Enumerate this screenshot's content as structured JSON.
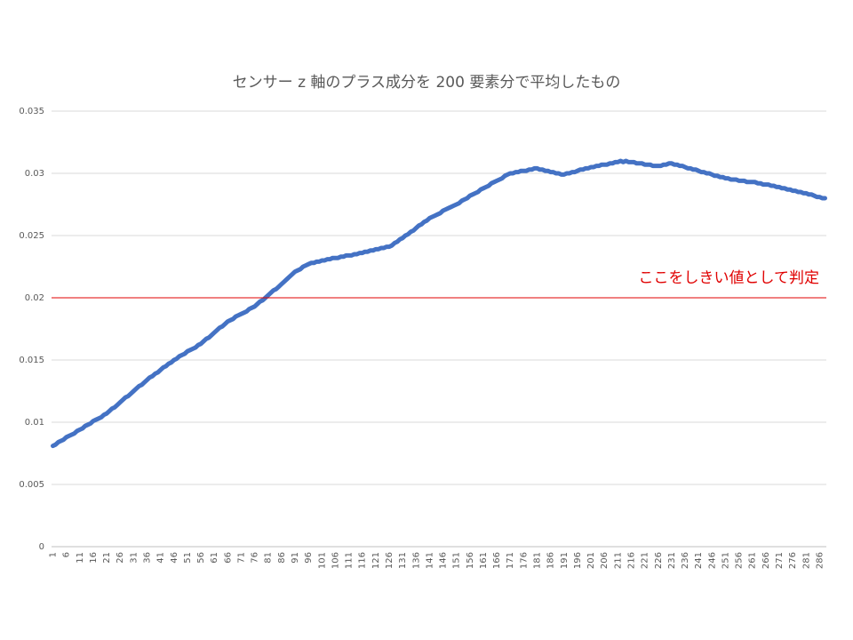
{
  "chart_data": {
    "type": "line",
    "title": "センサー z 軸のプラス成分を 200 要素分で平均したもの",
    "categories": [
      1,
      null,
      null,
      null,
      null,
      6,
      null,
      null,
      null,
      null,
      11,
      null,
      null,
      null,
      null,
      16,
      null,
      null,
      null,
      null,
      21,
      null,
      null,
      null,
      null,
      26,
      null,
      null,
      null,
      null,
      31,
      null,
      null,
      null,
      null,
      36,
      null,
      null,
      null,
      null,
      41,
      null,
      null,
      null,
      null,
      46,
      null,
      null,
      null,
      null,
      51,
      null,
      null,
      null,
      null,
      56,
      null,
      null,
      null,
      null,
      61,
      null,
      null,
      null,
      null,
      66,
      null,
      null,
      null,
      null,
      71,
      null,
      null,
      null,
      null,
      76,
      null,
      null,
      null,
      null,
      81,
      null,
      null,
      null,
      null,
      86,
      null,
      null,
      null,
      null,
      91,
      null,
      null,
      null,
      null,
      96,
      null,
      null,
      null,
      null,
      101,
      null,
      null,
      null,
      null,
      106,
      null,
      null,
      null,
      null,
      111,
      null,
      null,
      null,
      null,
      116,
      null,
      null,
      null,
      null,
      121,
      null,
      null,
      null,
      null,
      126,
      null,
      null,
      null,
      null,
      131,
      null,
      null,
      null,
      null,
      136,
      null,
      null,
      null,
      null,
      141,
      null,
      null,
      null,
      null,
      146,
      null,
      null,
      null,
      null,
      151,
      null,
      null,
      null,
      null,
      156,
      null,
      null,
      null,
      null,
      161,
      null,
      null,
      null,
      null,
      166,
      null,
      null,
      null,
      null,
      171,
      null,
      null,
      null,
      null,
      176,
      null,
      null,
      null,
      null,
      181,
      null,
      null,
      null,
      null,
      186,
      null,
      null,
      null,
      null,
      191,
      null,
      null,
      null,
      null,
      196,
      null,
      null,
      null,
      null,
      201,
      null,
      null,
      null,
      null,
      206,
      null,
      null,
      null,
      null,
      211,
      null,
      null,
      null,
      null,
      216,
      null,
      null,
      null,
      null,
      221,
      null,
      null,
      null,
      null,
      226,
      null,
      null,
      null,
      null,
      231,
      null,
      null,
      null,
      null,
      236,
      null,
      null,
      null,
      null,
      241,
      null,
      null,
      null,
      null,
      246,
      null,
      null,
      null,
      null,
      251,
      null,
      null,
      null,
      null,
      256,
      null,
      null,
      null,
      null,
      261,
      null,
      null,
      null,
      null,
      266,
      null,
      null,
      null,
      null,
      271,
      null,
      null,
      null,
      null,
      276,
      null,
      null,
      null,
      null,
      281,
      null,
      null,
      null,
      null,
      286,
      null,
      null
    ],
    "series": [
      {
        "color": "#4472c4",
        "values": [
          0.0081,
          0.0082,
          0.0084,
          0.0085,
          0.0086,
          0.0088,
          0.0089,
          0.009,
          0.0091,
          0.0093,
          0.0094,
          0.0095,
          0.0097,
          0.0098,
          0.0099,
          0.0101,
          0.0102,
          0.0103,
          0.0104,
          0.0106,
          0.0107,
          0.0109,
          0.0111,
          0.0112,
          0.0114,
          0.0116,
          0.0118,
          0.012,
          0.0121,
          0.0123,
          0.0125,
          0.0127,
          0.0129,
          0.013,
          0.0132,
          0.0134,
          0.0136,
          0.0137,
          0.0139,
          0.014,
          0.0142,
          0.0144,
          0.0145,
          0.0147,
          0.0148,
          0.015,
          0.0151,
          0.0153,
          0.0154,
          0.0155,
          0.0157,
          0.0158,
          0.0159,
          0.016,
          0.0162,
          0.0163,
          0.0165,
          0.0167,
          0.0168,
          0.017,
          0.0172,
          0.0174,
          0.0176,
          0.0177,
          0.0179,
          0.0181,
          0.0182,
          0.0183,
          0.0185,
          0.0186,
          0.0187,
          0.0188,
          0.0189,
          0.0191,
          0.0192,
          0.0193,
          0.0195,
          0.0197,
          0.0198,
          0.02,
          0.0202,
          0.0204,
          0.0206,
          0.0207,
          0.0209,
          0.0211,
          0.0213,
          0.0215,
          0.0217,
          0.0219,
          0.0221,
          0.0222,
          0.0223,
          0.0225,
          0.0226,
          0.0227,
          0.0228,
          0.0228,
          0.0229,
          0.0229,
          0.023,
          0.023,
          0.0231,
          0.0231,
          0.0232,
          0.0232,
          0.0232,
          0.0233,
          0.0233,
          0.0234,
          0.0234,
          0.0234,
          0.0235,
          0.0235,
          0.0236,
          0.0236,
          0.0237,
          0.0237,
          0.0238,
          0.0238,
          0.0239,
          0.0239,
          0.024,
          0.024,
          0.0241,
          0.0241,
          0.0242,
          0.0244,
          0.0245,
          0.0247,
          0.0248,
          0.025,
          0.0251,
          0.0253,
          0.0254,
          0.0256,
          0.0258,
          0.0259,
          0.0261,
          0.0262,
          0.0264,
          0.0265,
          0.0266,
          0.0267,
          0.0268,
          0.027,
          0.0271,
          0.0272,
          0.0273,
          0.0274,
          0.0275,
          0.0276,
          0.0278,
          0.0279,
          0.028,
          0.0282,
          0.0283,
          0.0284,
          0.0285,
          0.0287,
          0.0288,
          0.0289,
          0.029,
          0.0292,
          0.0293,
          0.0294,
          0.0295,
          0.0296,
          0.0298,
          0.0299,
          0.03,
          0.03,
          0.0301,
          0.0301,
          0.0302,
          0.0302,
          0.0302,
          0.0303,
          0.0303,
          0.0304,
          0.0304,
          0.0303,
          0.0303,
          0.0302,
          0.0302,
          0.0301,
          0.0301,
          0.03,
          0.03,
          0.0299,
          0.0299,
          0.03,
          0.03,
          0.0301,
          0.0301,
          0.0302,
          0.0303,
          0.0303,
          0.0304,
          0.0304,
          0.0305,
          0.0305,
          0.0306,
          0.0306,
          0.0307,
          0.0307,
          0.0307,
          0.0308,
          0.0308,
          0.0309,
          0.0309,
          0.031,
          0.0309,
          0.031,
          0.0309,
          0.0309,
          0.0309,
          0.0308,
          0.0308,
          0.0308,
          0.0307,
          0.0307,
          0.0307,
          0.0306,
          0.0306,
          0.0306,
          0.0306,
          0.0307,
          0.0307,
          0.0308,
          0.0308,
          0.0307,
          0.0307,
          0.0306,
          0.0306,
          0.0305,
          0.0304,
          0.0304,
          0.0303,
          0.0303,
          0.0302,
          0.0301,
          0.0301,
          0.03,
          0.03,
          0.0299,
          0.0298,
          0.0298,
          0.0297,
          0.0297,
          0.0296,
          0.0296,
          0.0295,
          0.0295,
          0.0295,
          0.0294,
          0.0294,
          0.0294,
          0.0293,
          0.0293,
          0.0293,
          0.0293,
          0.0292,
          0.0292,
          0.0291,
          0.0291,
          0.0291,
          0.029,
          0.029,
          0.0289,
          0.0289,
          0.0288,
          0.0288,
          0.0287,
          0.0287,
          0.0286,
          0.0286,
          0.0285,
          0.0285,
          0.0284,
          0.0284,
          0.0283,
          0.0283,
          0.0282,
          0.0281,
          0.0281,
          0.028,
          0.028
        ]
      }
    ],
    "ylim": [
      0,
      0.035
    ],
    "yticks": [
      0,
      0.005,
      0.01,
      0.015,
      0.02,
      0.025,
      0.03,
      0.035
    ],
    "grid": true,
    "threshold": {
      "value": 0.02,
      "label": "ここをしきい値として判定",
      "color": "#e00000"
    }
  }
}
